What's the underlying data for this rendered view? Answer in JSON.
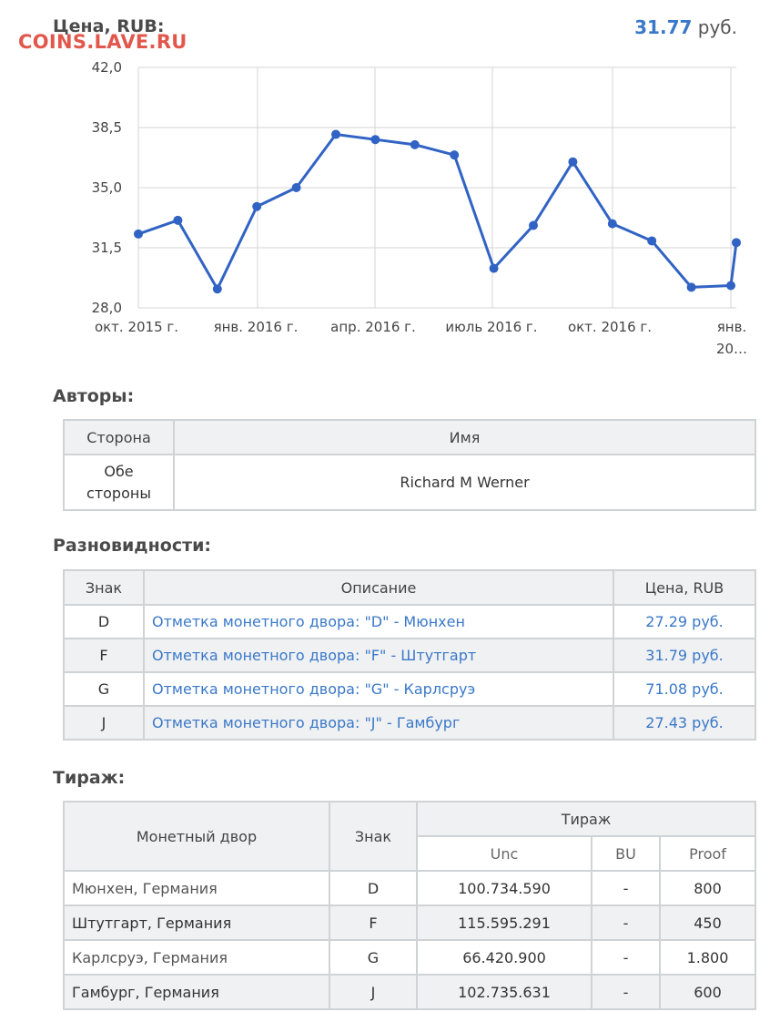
{
  "header": {
    "price_label": "Цена, RUB:",
    "watermark": "COINS.LAVE.RU",
    "current_price": "31.77",
    "current_unit": "руб."
  },
  "chart_data": {
    "type": "line",
    "y_ticks": [
      "42,0",
      "38,5",
      "35,0",
      "31,5",
      "28,0"
    ],
    "ylim": [
      28,
      42
    ],
    "x_tick_labels": [
      "окт. 2015 г.",
      "янв. 2016 г.",
      "апр. 2016 г.",
      "июль 2016 г.",
      "окт. 2016 г.",
      "янв.",
      "20…"
    ],
    "series": [
      {
        "color": "#3163c4",
        "values": [
          32.3,
          33.1,
          29.1,
          33.9,
          35.0,
          38.1,
          37.8,
          37.5,
          36.9,
          30.3,
          32.8,
          36.5,
          32.9,
          31.9,
          29.2,
          29.3,
          31.8
        ]
      }
    ],
    "grid": true
  },
  "authors": {
    "title": "Авторы:",
    "headers": [
      "Сторона",
      "Имя"
    ],
    "rows": [
      {
        "side_line1": "Обе",
        "side_line2": "стороны",
        "name": "Richard M Werner"
      }
    ]
  },
  "varieties": {
    "title": "Разновидности:",
    "headers": [
      "Знак",
      "Описание",
      "Цена, RUB"
    ],
    "rows": [
      {
        "mark": "D",
        "desc": "Отметка монетного двора: \"D\" - Мюнхен",
        "price": "27.29 руб."
      },
      {
        "mark": "F",
        "desc": "Отметка монетного двора: \"F\" - Штутгарт",
        "price": "31.79 руб."
      },
      {
        "mark": "G",
        "desc": "Отметка монетного двора: \"G\" - Карлсруэ",
        "price": "71.08 руб."
      },
      {
        "mark": "J",
        "desc": "Отметка монетного двора: \"J\" - Гамбург",
        "price": "27.43 руб."
      }
    ]
  },
  "mintage": {
    "title": "Тираж:",
    "headers": {
      "mint": "Монетный двор",
      "mark": "Знак",
      "mintage": "Тираж",
      "unc": "Unc",
      "bu": "BU",
      "proof": "Proof"
    },
    "rows": [
      {
        "mint": "Мюнхен, Германия",
        "mark": "D",
        "unc": "100.734.590",
        "bu": "-",
        "proof": "800"
      },
      {
        "mint": "Штутгарт, Германия",
        "mark": "F",
        "unc": "115.595.291",
        "bu": "-",
        "proof": "450"
      },
      {
        "mint": "Карлсруэ, Германия",
        "mark": "G",
        "unc": "66.420.900",
        "bu": "-",
        "proof": "1.800"
      },
      {
        "mint": "Гамбург, Германия",
        "mark": "J",
        "unc": "102.735.631",
        "bu": "-",
        "proof": "600"
      }
    ]
  }
}
